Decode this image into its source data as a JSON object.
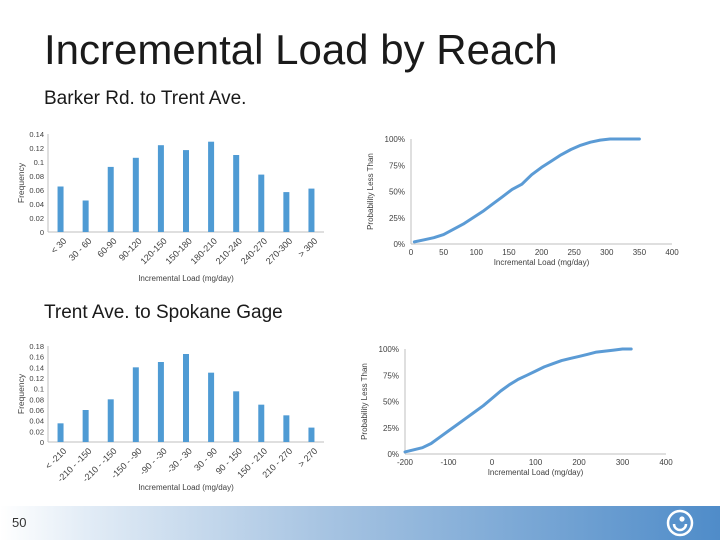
{
  "slide": {
    "title": "Incremental Load by Reach",
    "page_number": "50"
  },
  "colors": {
    "bar": "#4f9bd4",
    "curve": "#5b9bd5",
    "axis": "#bfbfbf"
  },
  "chart_data": [
    {
      "id": "reach1_hist",
      "type": "bar",
      "section_title": "Barker Rd. to Trent Ave.",
      "categories": [
        "< 30",
        "30 - 60",
        "60-90",
        "90-120",
        "120-150",
        "150-180",
        "180-210",
        "210-240",
        "240-270",
        "270-300",
        "> 300"
      ],
      "values": [
        0.065,
        0.045,
        0.093,
        0.106,
        0.124,
        0.117,
        0.129,
        0.11,
        0.082,
        0.057,
        0.062
      ],
      "ylabel": "Frequency",
      "xlabel": "Incremental Load (mg/day)",
      "ylim": [
        0,
        0.14
      ],
      "yticks": [
        "0",
        "0.02",
        "0.04",
        "0.06",
        "0.08",
        "0.1",
        "0.12",
        "0.14"
      ]
    },
    {
      "id": "reach1_cdf",
      "type": "line",
      "series": [
        {
          "x": [
            5,
            20,
            35,
            50,
            65,
            80,
            95,
            110,
            125,
            140,
            155,
            170,
            185,
            200,
            215,
            230,
            245,
            260,
            275,
            290,
            305,
            320,
            335,
            350
          ],
          "y": [
            0.02,
            0.04,
            0.06,
            0.09,
            0.14,
            0.19,
            0.25,
            0.31,
            0.38,
            0.45,
            0.52,
            0.57,
            0.66,
            0.73,
            0.79,
            0.85,
            0.9,
            0.94,
            0.97,
            0.99,
            1.0,
            1.0,
            1.0,
            1.0
          ]
        }
      ],
      "ylabel": "Probability Less Than",
      "xlabel": "Incremental Load (mg/day)",
      "xlim": [
        0,
        400
      ],
      "xticks": [
        "0",
        "50",
        "100",
        "150",
        "200",
        "250",
        "300",
        "350",
        "400"
      ],
      "ylim": [
        0,
        1
      ],
      "yticks": [
        "0%",
        "25%",
        "50%",
        "75%",
        "100%"
      ]
    },
    {
      "id": "reach2_hist",
      "type": "bar",
      "section_title": "Trent Ave. to Spokane Gage",
      "categories": [
        "< -210",
        "-210 - -150",
        "-210 - -150",
        "-150 - -90",
        "-90 - -30",
        "-30 - 30",
        "30 - 90",
        "90 - 150",
        "150 - 210",
        "210 - 270",
        "> 270"
      ],
      "values": [
        0.035,
        0.06,
        0.08,
        0.14,
        0.15,
        0.165,
        0.13,
        0.095,
        0.07,
        0.05,
        0.027
      ],
      "ylabel": "Frequency",
      "xlabel": "Incremental Load (mg/day)",
      "ylim": [
        0,
        0.18
      ],
      "yticks": [
        "0",
        "0.02",
        "0.04",
        "0.06",
        "0.08",
        "0.1",
        "0.12",
        "0.14",
        "0.16",
        "0.18"
      ]
    },
    {
      "id": "reach2_cdf",
      "type": "line",
      "series": [
        {
          "x": [
            -200,
            -180,
            -160,
            -140,
            -120,
            -100,
            -80,
            -60,
            -40,
            -20,
            0,
            20,
            40,
            60,
            80,
            100,
            120,
            140,
            160,
            180,
            200,
            220,
            240,
            260,
            280,
            300,
            320
          ],
          "y": [
            0.02,
            0.04,
            0.06,
            0.1,
            0.16,
            0.22,
            0.28,
            0.34,
            0.4,
            0.46,
            0.53,
            0.6,
            0.66,
            0.71,
            0.75,
            0.79,
            0.83,
            0.86,
            0.89,
            0.91,
            0.93,
            0.95,
            0.97,
            0.98,
            0.99,
            1.0,
            1.0
          ]
        }
      ],
      "ylabel": "Probability Less Than",
      "xlabel": "Incremental Load (mg/day)",
      "xlim": [
        -200,
        400
      ],
      "xticks": [
        "-200",
        "-100",
        "0",
        "100",
        "200",
        "300",
        "400"
      ],
      "ylim": [
        0,
        1
      ],
      "yticks": [
        "0%",
        "25%",
        "50%",
        "75%",
        "100%"
      ]
    }
  ]
}
